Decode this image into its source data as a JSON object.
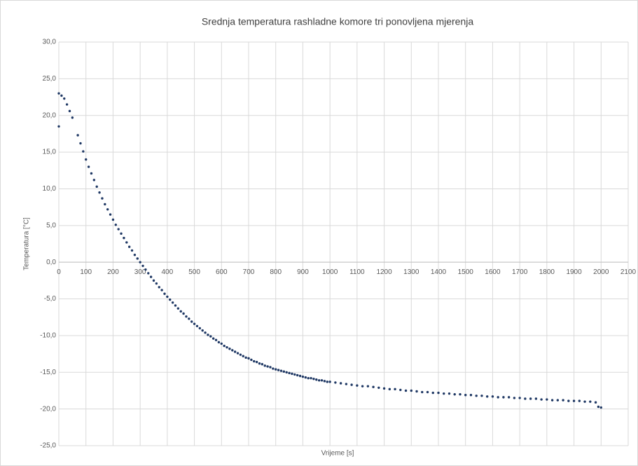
{
  "chart_data": {
    "type": "scatter",
    "title": "Srednja temperatura rashladne komore tri ponovljena mjerenja",
    "x_label": "Vrijeme [s]",
    "y_label": "Temperatura [°C]",
    "grid": true,
    "xlim": [
      0,
      2100
    ],
    "xticks": [
      0,
      100,
      200,
      300,
      400,
      500,
      600,
      700,
      800,
      900,
      1000,
      1100,
      1200,
      1300,
      1400,
      1500,
      1600,
      1700,
      1800,
      1900,
      2000,
      2100
    ],
    "ylim": [
      -25,
      30
    ],
    "yticks": [
      {
        "value": -25,
        "label": "-25,0"
      },
      {
        "value": -20,
        "label": "-20,0"
      },
      {
        "value": -15,
        "label": "-15,0"
      },
      {
        "value": -10,
        "label": "-10,0"
      },
      {
        "value": -5,
        "label": "-5,0"
      },
      {
        "value": 0,
        "label": "0,0"
      },
      {
        "value": 5,
        "label": "5,0"
      },
      {
        "value": 10,
        "label": "10,0"
      },
      {
        "value": 15,
        "label": "15,0"
      },
      {
        "value": 20,
        "label": "20,0"
      },
      {
        "value": 25,
        "label": "25,0"
      },
      {
        "value": 30,
        "label": "30,0"
      }
    ],
    "series": [
      {
        "color": "#1f3864",
        "x": [
          0,
          0,
          10,
          20,
          30,
          40,
          50,
          70,
          80,
          90,
          100,
          110,
          120,
          130,
          140,
          150,
          160,
          170,
          180,
          190,
          200,
          210,
          220,
          230,
          240,
          250,
          260,
          270,
          280,
          290,
          300,
          310,
          320,
          330,
          340,
          350,
          360,
          370,
          380,
          390,
          400,
          410,
          420,
          430,
          440,
          450,
          460,
          470,
          480,
          490,
          500,
          510,
          520,
          530,
          540,
          550,
          560,
          570,
          580,
          590,
          600,
          610,
          620,
          630,
          640,
          650,
          660,
          670,
          680,
          690,
          700,
          710,
          720,
          730,
          740,
          750,
          760,
          770,
          780,
          790,
          800,
          810,
          820,
          830,
          840,
          850,
          860,
          870,
          880,
          890,
          900,
          910,
          920,
          930,
          940,
          950,
          960,
          970,
          980,
          990,
          1000,
          1020,
          1040,
          1060,
          1080,
          1100,
          1120,
          1140,
          1160,
          1180,
          1200,
          1220,
          1240,
          1260,
          1280,
          1300,
          1320,
          1340,
          1360,
          1380,
          1400,
          1420,
          1440,
          1460,
          1480,
          1500,
          1520,
          1540,
          1560,
          1580,
          1600,
          1620,
          1640,
          1660,
          1680,
          1700,
          1720,
          1740,
          1760,
          1780,
          1800,
          1820,
          1840,
          1860,
          1880,
          1900,
          1920,
          1940,
          1960,
          1980,
          1990,
          2000
        ],
        "values": [
          18.5,
          23.0,
          22.7,
          22.3,
          21.5,
          20.6,
          19.7,
          17.3,
          16.2,
          15.1,
          14.0,
          13.0,
          12.1,
          11.2,
          10.3,
          9.5,
          8.7,
          7.9,
          7.2,
          6.5,
          5.8,
          5.1,
          4.5,
          3.9,
          3.3,
          2.7,
          2.1,
          1.6,
          1.0,
          0.5,
          0.0,
          -0.5,
          -1.0,
          -1.5,
          -2.0,
          -2.5,
          -2.9,
          -3.4,
          -3.8,
          -4.3,
          -4.7,
          -5.1,
          -5.5,
          -5.9,
          -6.3,
          -6.7,
          -7.0,
          -7.4,
          -7.7,
          -8.1,
          -8.4,
          -8.7,
          -9.0,
          -9.3,
          -9.6,
          -9.9,
          -10.1,
          -10.4,
          -10.6,
          -10.9,
          -11.1,
          -11.4,
          -11.6,
          -11.8,
          -12.0,
          -12.2,
          -12.4,
          -12.6,
          -12.8,
          -13.0,
          -13.1,
          -13.3,
          -13.5,
          -13.6,
          -13.8,
          -13.9,
          -14.1,
          -14.2,
          -14.3,
          -14.5,
          -14.6,
          -14.7,
          -14.8,
          -14.9,
          -15.0,
          -15.1,
          -15.2,
          -15.3,
          -15.4,
          -15.5,
          -15.6,
          -15.7,
          -15.8,
          -15.8,
          -15.9,
          -16.0,
          -16.1,
          -16.1,
          -16.2,
          -16.3,
          -16.3,
          -16.4,
          -16.5,
          -16.6,
          -16.7,
          -16.8,
          -16.9,
          -16.9,
          -17.0,
          -17.1,
          -17.2,
          -17.3,
          -17.3,
          -17.4,
          -17.5,
          -17.5,
          -17.6,
          -17.7,
          -17.7,
          -17.8,
          -17.8,
          -17.9,
          -17.9,
          -18.0,
          -18.0,
          -18.1,
          -18.1,
          -18.2,
          -18.2,
          -18.3,
          -18.3,
          -18.4,
          -18.4,
          -18.4,
          -18.5,
          -18.5,
          -18.6,
          -18.6,
          -18.6,
          -18.7,
          -18.7,
          -18.8,
          -18.8,
          -18.8,
          -18.9,
          -18.9,
          -18.9,
          -19.0,
          -19.0,
          -19.1,
          -19.7,
          -19.8
        ]
      }
    ]
  }
}
